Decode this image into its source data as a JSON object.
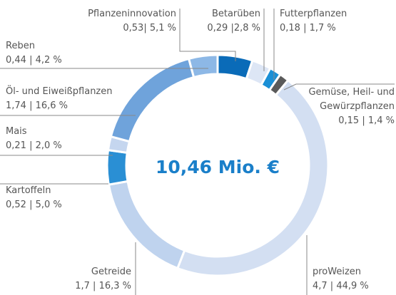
{
  "chart_data": {
    "type": "donut",
    "center_label": "10,46 Mio. €",
    "categories": [
      "Pflanzeninnovation",
      "Betarüben",
      "Futterpflanzen",
      "Gemüse, Heil- und\nGewürzpflanzen",
      "proWeizen",
      "Getreide",
      "Kartoffeln",
      "Mais",
      "Öl- und Eiweißpflanzen",
      "Reben"
    ],
    "values": [
      5.1,
      2.8,
      1.7,
      1.4,
      44.9,
      16.3,
      5.0,
      2.0,
      16.6,
      4.2
    ],
    "value_labels": [
      "0,53| 5,1 %",
      "0,29 |2,8 %",
      "0,18 | 1,7 %",
      "0,15 | 1,4 %",
      "4,7 | 44,9 %",
      "1,7 | 16,3 %",
      "0,52 | 5,0 %",
      "0,21 | 2,0 %",
      "1,74 | 16,6 %",
      "0,44 | 4,2 %"
    ],
    "colors": [
      "#0a6bb8",
      "#dde6f5",
      "#1a8fd6",
      "#5a5a5a",
      "#d3dff2",
      "#bfd3ee",
      "#2a8fd4",
      "#c5d6ef",
      "#6fa3db",
      "#8db8e6"
    ]
  }
}
